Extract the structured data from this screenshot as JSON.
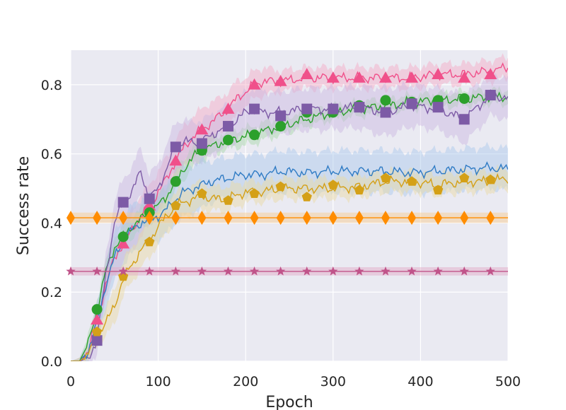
{
  "chart_data": {
    "type": "line",
    "title": "",
    "xlabel": "Epoch",
    "ylabel": "Success rate",
    "xlim": [
      0,
      500
    ],
    "ylim": [
      0,
      0.9
    ],
    "xticks": [
      0,
      100,
      200,
      300,
      400,
      500
    ],
    "xtick_labels": [
      "0",
      "100",
      "200",
      "300",
      "400",
      "500"
    ],
    "yticks": [
      0.0,
      0.2,
      0.4,
      0.6,
      0.8
    ],
    "ytick_labels": [
      "0.0",
      "0.2",
      "0.4",
      "0.6",
      "0.8"
    ],
    "grid": true,
    "background": "#eaeaf2",
    "series": [
      {
        "name": "pink-triangle",
        "color": "#f0508a",
        "band_color": "#f7a8c4",
        "marker": "triangle",
        "x": [
          0,
          10,
          20,
          30,
          40,
          50,
          60,
          70,
          80,
          90,
          100,
          110,
          120,
          130,
          140,
          150,
          160,
          170,
          180,
          190,
          200,
          210,
          220,
          240,
          270,
          300,
          330,
          360,
          390,
          420,
          450,
          480,
          500
        ],
        "y": [
          0.0,
          0.0,
          0.03,
          0.12,
          0.22,
          0.3,
          0.34,
          0.38,
          0.42,
          0.45,
          0.49,
          0.53,
          0.58,
          0.62,
          0.65,
          0.67,
          0.69,
          0.71,
          0.73,
          0.76,
          0.78,
          0.8,
          0.81,
          0.81,
          0.82,
          0.82,
          0.82,
          0.82,
          0.82,
          0.83,
          0.83,
          0.84,
          0.85
        ],
        "band": [
          0.0,
          0.01,
          0.02,
          0.03,
          0.04,
          0.05,
          0.05,
          0.06,
          0.06,
          0.06,
          0.06,
          0.06,
          0.06,
          0.06,
          0.06,
          0.06,
          0.06,
          0.05,
          0.05,
          0.05,
          0.04,
          0.04,
          0.04,
          0.03,
          0.03,
          0.03,
          0.03,
          0.03,
          0.03,
          0.03,
          0.03,
          0.03,
          0.03
        ],
        "marker_x": [
          30,
          60,
          90,
          120,
          150,
          180,
          210,
          240,
          270,
          300,
          330,
          360,
          390,
          420,
          450,
          480
        ],
        "marker_y": [
          0.12,
          0.34,
          0.45,
          0.58,
          0.67,
          0.73,
          0.8,
          0.81,
          0.83,
          0.82,
          0.82,
          0.82,
          0.82,
          0.83,
          0.82,
          0.83
        ]
      },
      {
        "name": "green-circle",
        "color": "#2ca02c",
        "band_color": "#a6d8a6",
        "marker": "circle",
        "x": [
          0,
          10,
          20,
          30,
          40,
          50,
          60,
          70,
          80,
          90,
          100,
          110,
          120,
          130,
          140,
          150,
          160,
          170,
          180,
          190,
          200,
          210,
          220,
          240,
          270,
          300,
          330,
          360,
          390,
          420,
          450,
          480,
          500
        ],
        "y": [
          0.0,
          0.0,
          0.05,
          0.15,
          0.26,
          0.33,
          0.36,
          0.39,
          0.41,
          0.43,
          0.45,
          0.48,
          0.52,
          0.56,
          0.59,
          0.61,
          0.62,
          0.63,
          0.64,
          0.645,
          0.65,
          0.655,
          0.665,
          0.68,
          0.7,
          0.72,
          0.73,
          0.74,
          0.75,
          0.755,
          0.76,
          0.765,
          0.765
        ],
        "band": [
          0.0,
          0.01,
          0.02,
          0.03,
          0.03,
          0.03,
          0.03,
          0.03,
          0.03,
          0.03,
          0.03,
          0.03,
          0.03,
          0.03,
          0.03,
          0.03,
          0.025,
          0.025,
          0.025,
          0.025,
          0.025,
          0.025,
          0.025,
          0.025,
          0.02,
          0.02,
          0.02,
          0.02,
          0.02,
          0.02,
          0.02,
          0.02,
          0.02
        ],
        "marker_x": [
          30,
          60,
          90,
          120,
          150,
          180,
          210,
          240,
          270,
          300,
          330,
          360,
          390,
          420,
          450,
          480
        ],
        "marker_y": [
          0.15,
          0.36,
          0.43,
          0.52,
          0.61,
          0.64,
          0.655,
          0.68,
          0.72,
          0.72,
          0.74,
          0.755,
          0.75,
          0.755,
          0.76,
          0.77
        ]
      },
      {
        "name": "purple-square",
        "color": "#7d5ba6",
        "band_color": "#c9b6e0",
        "marker": "square",
        "x": [
          0,
          10,
          20,
          30,
          40,
          50,
          60,
          70,
          80,
          90,
          100,
          110,
          120,
          130,
          140,
          150,
          160,
          170,
          180,
          190,
          200,
          210,
          220,
          240,
          270,
          300,
          330,
          360,
          390,
          420,
          450,
          480,
          500
        ],
        "y": [
          0.0,
          0.0,
          0.01,
          0.06,
          0.25,
          0.4,
          0.46,
          0.49,
          0.55,
          0.47,
          0.5,
          0.56,
          0.62,
          0.64,
          0.63,
          0.64,
          0.65,
          0.67,
          0.68,
          0.7,
          0.72,
          0.73,
          0.72,
          0.72,
          0.73,
          0.73,
          0.735,
          0.72,
          0.74,
          0.73,
          0.7,
          0.77,
          0.76
        ],
        "band": [
          0.0,
          0.01,
          0.02,
          0.04,
          0.06,
          0.06,
          0.07,
          0.07,
          0.07,
          0.07,
          0.07,
          0.07,
          0.07,
          0.06,
          0.06,
          0.06,
          0.06,
          0.06,
          0.06,
          0.06,
          0.06,
          0.06,
          0.06,
          0.06,
          0.06,
          0.06,
          0.06,
          0.07,
          0.06,
          0.06,
          0.07,
          0.06,
          0.06
        ],
        "marker_x": [
          30,
          60,
          90,
          120,
          150,
          180,
          210,
          240,
          270,
          300,
          330,
          360,
          390,
          420,
          450,
          480
        ],
        "marker_y": [
          0.06,
          0.46,
          0.47,
          0.62,
          0.63,
          0.68,
          0.73,
          0.71,
          0.73,
          0.73,
          0.735,
          0.72,
          0.745,
          0.735,
          0.7,
          0.77
        ]
      },
      {
        "name": "blue-line",
        "color": "#2f7bc4",
        "band_color": "#a9c8ec",
        "marker": "none",
        "x": [
          0,
          10,
          20,
          30,
          40,
          50,
          60,
          70,
          80,
          90,
          100,
          110,
          120,
          130,
          140,
          150,
          160,
          170,
          180,
          190,
          200,
          220,
          240,
          270,
          300,
          330,
          360,
          390,
          420,
          450,
          480,
          500
        ],
        "y": [
          0.0,
          0.0,
          0.03,
          0.11,
          0.22,
          0.3,
          0.35,
          0.38,
          0.4,
          0.41,
          0.42,
          0.44,
          0.47,
          0.49,
          0.5,
          0.51,
          0.52,
          0.525,
          0.53,
          0.535,
          0.54,
          0.54,
          0.55,
          0.545,
          0.55,
          0.55,
          0.55,
          0.545,
          0.55,
          0.555,
          0.56,
          0.555
        ],
        "band": [
          0.0,
          0.01,
          0.03,
          0.05,
          0.07,
          0.07,
          0.07,
          0.07,
          0.07,
          0.07,
          0.07,
          0.07,
          0.07,
          0.07,
          0.07,
          0.07,
          0.06,
          0.06,
          0.06,
          0.06,
          0.06,
          0.06,
          0.06,
          0.06,
          0.06,
          0.06,
          0.06,
          0.06,
          0.06,
          0.06,
          0.06,
          0.06
        ],
        "marker_x": [],
        "marker_y": []
      },
      {
        "name": "gold-pentagon",
        "color": "#d4a017",
        "band_color": "#ead9a0",
        "marker": "pentagon",
        "x": [
          0,
          10,
          20,
          30,
          40,
          50,
          60,
          70,
          80,
          90,
          100,
          110,
          120,
          130,
          140,
          150,
          160,
          170,
          180,
          190,
          200,
          220,
          240,
          270,
          300,
          330,
          360,
          390,
          420,
          450,
          480,
          500
        ],
        "y": [
          0.0,
          0.0,
          0.02,
          0.08,
          0.11,
          0.16,
          0.24,
          0.28,
          0.32,
          0.35,
          0.39,
          0.42,
          0.45,
          0.46,
          0.47,
          0.48,
          0.47,
          0.47,
          0.47,
          0.48,
          0.49,
          0.49,
          0.5,
          0.5,
          0.5,
          0.505,
          0.52,
          0.52,
          0.51,
          0.52,
          0.52,
          0.53
        ],
        "band": [
          0.0,
          0.01,
          0.02,
          0.03,
          0.04,
          0.05,
          0.05,
          0.05,
          0.05,
          0.05,
          0.05,
          0.05,
          0.04,
          0.04,
          0.04,
          0.04,
          0.035,
          0.035,
          0.035,
          0.035,
          0.03,
          0.03,
          0.03,
          0.03,
          0.03,
          0.03,
          0.03,
          0.03,
          0.03,
          0.03,
          0.03,
          0.03
        ],
        "marker_x": [
          30,
          60,
          90,
          120,
          150,
          180,
          210,
          240,
          270,
          300,
          330,
          360,
          390,
          420,
          450,
          480
        ],
        "marker_y": [
          0.085,
          0.245,
          0.345,
          0.45,
          0.485,
          0.465,
          0.485,
          0.505,
          0.475,
          0.51,
          0.495,
          0.53,
          0.52,
          0.495,
          0.53,
          0.525
        ]
      },
      {
        "name": "orange-diamond-baseline",
        "color": "#ff8c00",
        "band_color": "#f9c98a",
        "marker": "diamond",
        "x": [
          0,
          500
        ],
        "y": [
          0.415,
          0.415
        ],
        "band": [
          0.015,
          0.015
        ],
        "marker_x": [
          0,
          30,
          60,
          90,
          120,
          150,
          180,
          210,
          240,
          270,
          300,
          330,
          360,
          390,
          420,
          450,
          480
        ],
        "marker_y": [
          0.415,
          0.415,
          0.415,
          0.415,
          0.415,
          0.415,
          0.415,
          0.415,
          0.415,
          0.415,
          0.415,
          0.415,
          0.415,
          0.415,
          0.415,
          0.415,
          0.415
        ]
      },
      {
        "name": "mauve-star-baseline",
        "color": "#c0548a",
        "band_color": "#e2a6c3",
        "marker": "star",
        "x": [
          0,
          500
        ],
        "y": [
          0.26,
          0.26
        ],
        "band": [
          0.012,
          0.012
        ],
        "marker_x": [
          0,
          30,
          60,
          90,
          120,
          150,
          180,
          210,
          240,
          270,
          300,
          330,
          360,
          390,
          420,
          450,
          480
        ],
        "marker_y": [
          0.26,
          0.26,
          0.26,
          0.26,
          0.26,
          0.26,
          0.26,
          0.26,
          0.26,
          0.26,
          0.26,
          0.26,
          0.26,
          0.26,
          0.26,
          0.26,
          0.26
        ]
      }
    ]
  }
}
